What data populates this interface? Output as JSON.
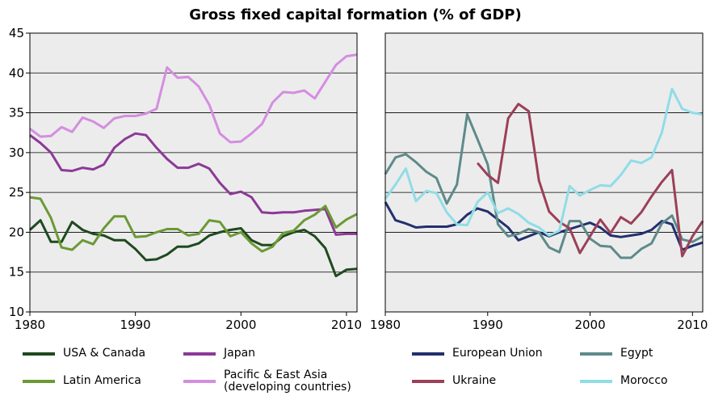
{
  "chart_data": [
    {
      "type": "line",
      "title": "Gross fixed capital formation (% of GDP)",
      "x": [
        1980,
        1981,
        1982,
        1983,
        1984,
        1985,
        1986,
        1987,
        1988,
        1989,
        1990,
        1991,
        1992,
        1993,
        1994,
        1995,
        1996,
        1997,
        1998,
        1999,
        2000,
        2001,
        2002,
        2003,
        2004,
        2005,
        2006,
        2007,
        2008,
        2009,
        2010,
        2011
      ],
      "xlim": [
        1980,
        2011
      ],
      "xticks": [
        1980,
        1990,
        2000,
        2010
      ],
      "ylim": [
        10,
        45
      ],
      "yticks": [
        10,
        15,
        20,
        25,
        30,
        35,
        40,
        45
      ],
      "grid": true,
      "series": [
        {
          "name": "USA & Canada",
          "color": "#1f4a1f",
          "values": [
            20.3,
            21.5,
            18.8,
            18.8,
            21.3,
            20.3,
            19.8,
            19.6,
            19.0,
            19.0,
            17.9,
            16.5,
            16.6,
            17.2,
            18.2,
            18.2,
            18.6,
            19.6,
            20.0,
            20.3,
            20.5,
            19.0,
            18.4,
            18.4,
            19.5,
            20.0,
            20.3,
            19.5,
            18.0,
            14.5,
            15.3,
            15.4
          ]
        },
        {
          "name": "Japan",
          "color": "#8b3a96",
          "values": [
            32.2,
            31.2,
            30.0,
            27.8,
            27.7,
            28.1,
            27.9,
            28.5,
            30.6,
            31.7,
            32.4,
            32.2,
            30.6,
            29.2,
            28.1,
            28.1,
            28.6,
            28.0,
            26.2,
            24.8,
            25.1,
            24.4,
            22.5,
            22.4,
            22.5,
            22.5,
            22.7,
            22.8,
            22.9,
            19.7,
            19.8,
            19.8
          ]
        },
        {
          "name": "Latin America",
          "color": "#6b9a35",
          "values": [
            24.4,
            24.2,
            21.8,
            18.1,
            17.8,
            19.0,
            18.5,
            20.5,
            22.0,
            22.0,
            19.4,
            19.5,
            20.0,
            20.4,
            20.4,
            19.6,
            19.8,
            21.5,
            21.3,
            19.5,
            20.0,
            18.6,
            17.6,
            18.2,
            19.9,
            20.2,
            21.5,
            22.2,
            23.3,
            20.6,
            21.6,
            22.3
          ]
        },
        {
          "name": "Pacific & East Asia\n(developing countries)",
          "color": "#d48ee0",
          "values": [
            33.0,
            32.0,
            32.1,
            33.2,
            32.6,
            34.4,
            33.9,
            33.1,
            34.3,
            34.6,
            34.6,
            34.9,
            35.5,
            40.7,
            39.4,
            39.5,
            38.3,
            36.0,
            32.4,
            31.3,
            31.4,
            32.4,
            33.6,
            36.3,
            37.6,
            37.5,
            37.8,
            36.8,
            38.9,
            41.0,
            42.1,
            42.3
          ]
        }
      ]
    },
    {
      "type": "line",
      "x": [
        1980,
        1981,
        1982,
        1983,
        1984,
        1985,
        1986,
        1987,
        1988,
        1989,
        1990,
        1991,
        1992,
        1993,
        1994,
        1995,
        1996,
        1997,
        1998,
        1999,
        2000,
        2001,
        2002,
        2003,
        2004,
        2005,
        2006,
        2007,
        2008,
        2009,
        2010,
        2011
      ],
      "xlim": [
        1980,
        2011
      ],
      "xticks": [
        1980,
        1990,
        2000,
        2010
      ],
      "ylim": [
        10,
        45
      ],
      "yticks": [
        10,
        15,
        20,
        25,
        30,
        35,
        40,
        45
      ],
      "grid": true,
      "series": [
        {
          "name": "European Union",
          "color": "#22306e",
          "values": [
            23.8,
            21.5,
            21.1,
            20.6,
            20.7,
            20.7,
            20.7,
            21.0,
            22.2,
            23.0,
            22.6,
            21.6,
            20.6,
            19.0,
            19.5,
            20.0,
            19.5,
            20.0,
            20.4,
            20.8,
            21.2,
            20.6,
            19.6,
            19.4,
            19.6,
            19.8,
            20.3,
            21.4,
            21.0,
            17.8,
            18.3,
            18.7
          ]
        },
        {
          "name": "Egypt",
          "color": "#5e8a8a",
          "values": [
            27.3,
            29.4,
            29.8,
            28.8,
            27.6,
            26.8,
            23.6,
            26.0,
            34.8,
            31.7,
            28.5,
            21.0,
            19.5,
            19.8,
            20.4,
            20.0,
            18.1,
            17.5,
            21.4,
            21.4,
            19.2,
            18.3,
            18.2,
            16.8,
            16.8,
            17.9,
            18.6,
            21.1,
            22.1,
            19.1,
            18.8,
            19.5
          ]
        },
        {
          "name": "Ukraine",
          "color": "#9b4058",
          "values": [
            null,
            null,
            null,
            null,
            null,
            null,
            null,
            null,
            null,
            28.7,
            27.2,
            26.2,
            34.3,
            36.1,
            35.2,
            26.5,
            22.6,
            21.3,
            20.5,
            17.4,
            19.5,
            21.6,
            19.9,
            21.9,
            21.1,
            22.5,
            24.5,
            26.3,
            27.8,
            17.0,
            19.5,
            21.4
          ]
        },
        {
          "name": "Morocco",
          "color": "#8fdde6",
          "values": [
            24.2,
            26.0,
            28.0,
            23.9,
            25.2,
            24.9,
            22.5,
            21.0,
            20.9,
            23.8,
            25.0,
            22.4,
            23.0,
            22.3,
            21.2,
            20.6,
            19.6,
            20.2,
            25.8,
            24.6,
            25.3,
            25.9,
            25.8,
            27.2,
            29.0,
            28.7,
            29.4,
            32.5,
            38.0,
            35.5,
            35.0,
            34.8
          ]
        }
      ]
    }
  ]
}
